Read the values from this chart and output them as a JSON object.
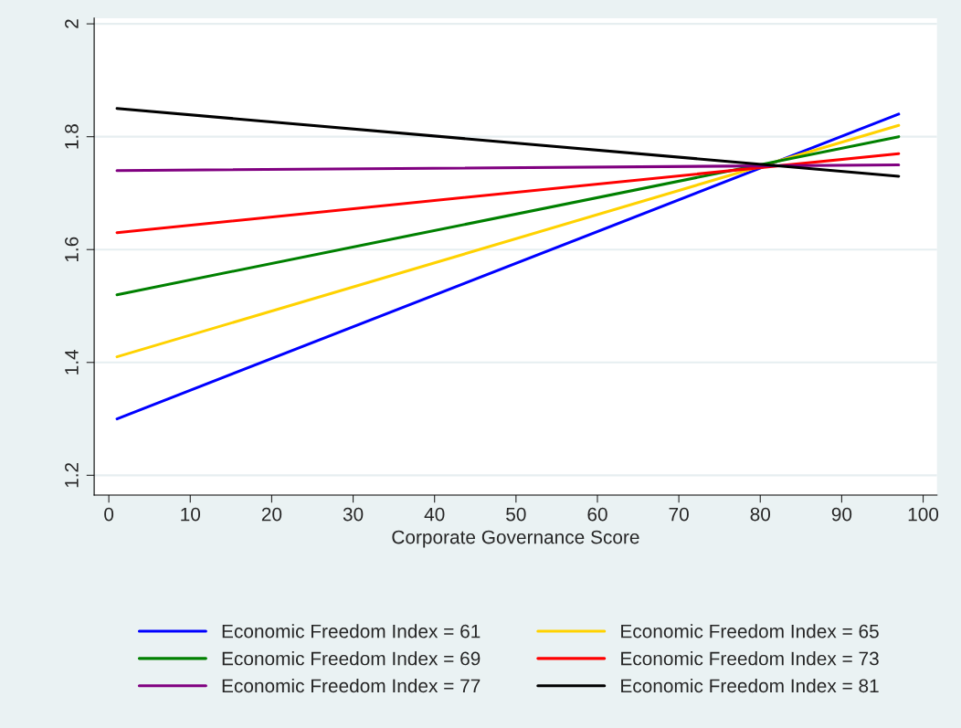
{
  "chart_data": {
    "type": "line",
    "xlabel": "Corporate Governance Score",
    "x": [
      1,
      97
    ],
    "xlim": [
      -1.8,
      101.7
    ],
    "xticks": [
      0,
      10,
      20,
      30,
      40,
      50,
      60,
      70,
      80,
      90,
      100
    ],
    "ylim": [
      1.165,
      2.01
    ],
    "yticks": [
      1.2,
      1.4,
      1.6,
      1.8,
      2
    ],
    "grid": "y",
    "legend": "bottom",
    "marker": "none",
    "line_style": "solid",
    "series": [
      {
        "name": "Economic Freedom Index = 61",
        "color": "#0000ff",
        "values": [
          1.3,
          1.84
        ]
      },
      {
        "name": "Economic Freedom Index = 65",
        "color": "#ffd200",
        "values": [
          1.41,
          1.82
        ]
      },
      {
        "name": "Economic Freedom Index = 69",
        "color": "#008000",
        "values": [
          1.52,
          1.8
        ]
      },
      {
        "name": "Economic Freedom Index = 73",
        "color": "#ff0000",
        "values": [
          1.63,
          1.77
        ]
      },
      {
        "name": "Economic Freedom Index = 77",
        "color": "#800080",
        "values": [
          1.74,
          1.75
        ]
      },
      {
        "name": "Economic Freedom Index = 81",
        "color": "#000000",
        "values": [
          1.85,
          1.73
        ]
      }
    ]
  }
}
